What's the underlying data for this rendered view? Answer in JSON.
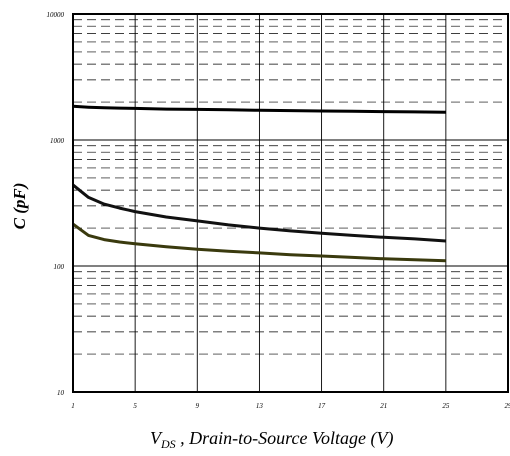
{
  "chart_data": {
    "type": "line",
    "title": "",
    "xlabel_prefix": "V",
    "xlabel_subscript": "DS",
    "xlabel_rest": " , Drain-to-Source Voltage (V)",
    "ylabel": "C (pF)",
    "yscale": "log",
    "xlim": [
      1,
      29
    ],
    "ylim": [
      10,
      10000
    ],
    "grid": true,
    "xticks": [
      "1",
      "5",
      "9",
      "13",
      "17",
      "21",
      "25",
      "29"
    ],
    "yticks": [
      "10",
      "100",
      "1000",
      "10000"
    ],
    "x": [
      1,
      2,
      3,
      4,
      5,
      7,
      9,
      11,
      13,
      15,
      17,
      19,
      21,
      23,
      25
    ],
    "series": [
      {
        "color": "#000000",
        "values": [
          1850,
          1820,
          1800,
          1790,
          1780,
          1760,
          1750,
          1735,
          1720,
          1710,
          1700,
          1690,
          1680,
          1670,
          1660
        ]
      },
      {
        "color": "#111111",
        "values": [
          440,
          350,
          310,
          288,
          270,
          245,
          228,
          212,
          200,
          190,
          182,
          175,
          169,
          164,
          158
        ]
      },
      {
        "color": "#3a3a0e",
        "values": [
          215,
          175,
          162,
          155,
          150,
          142,
          136,
          131,
          127,
          123,
          120,
          117,
          114,
          112,
          110
        ]
      }
    ]
  }
}
